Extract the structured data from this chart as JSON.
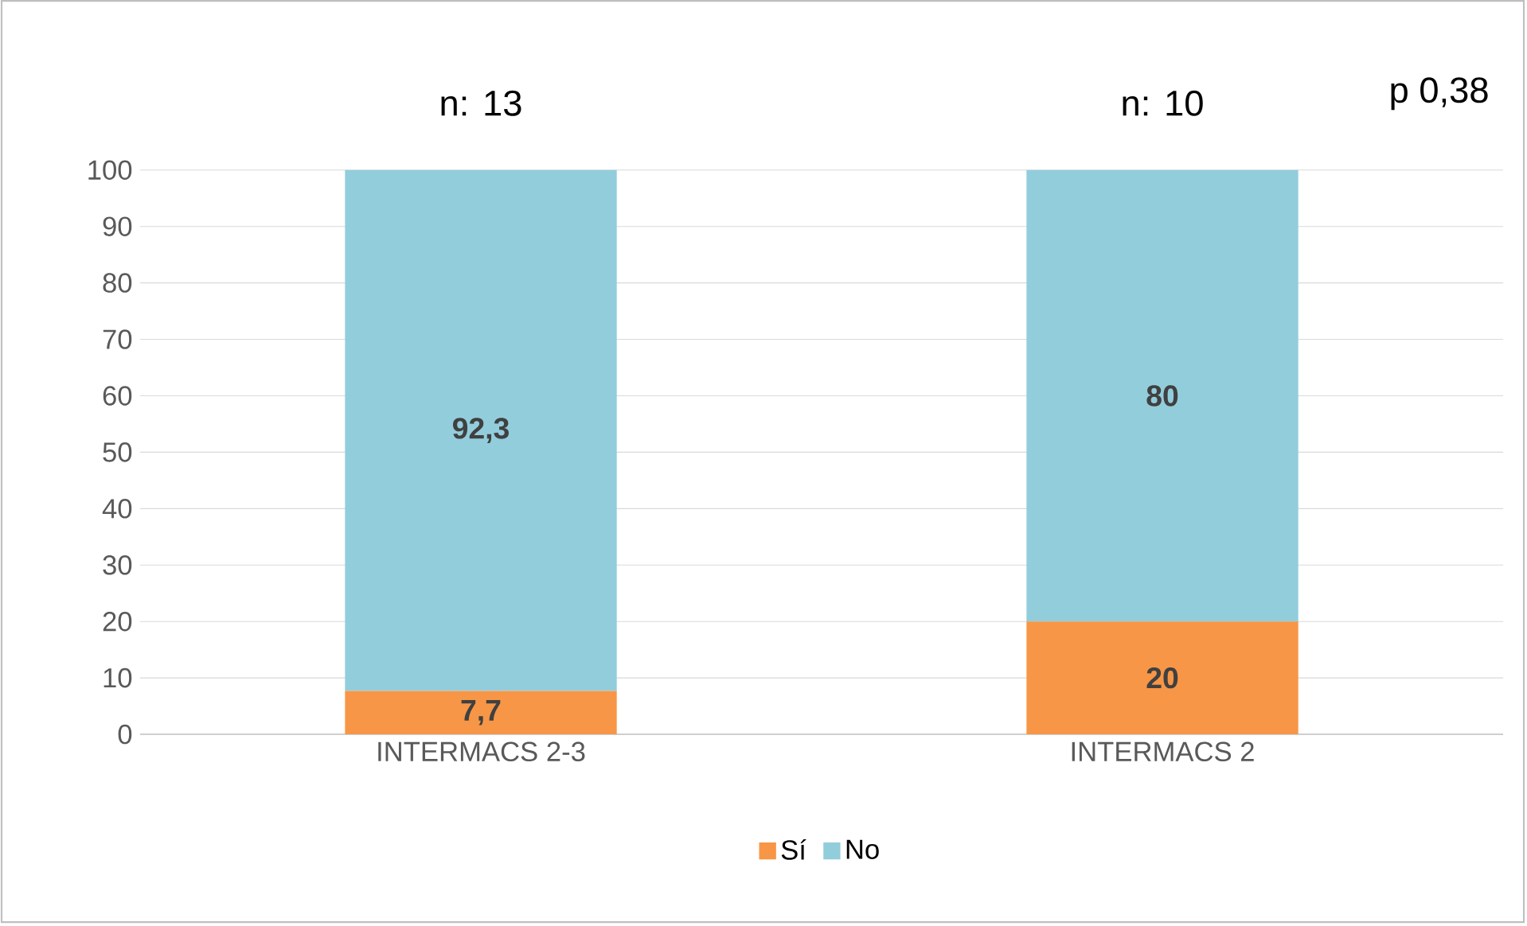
{
  "chart_data": {
    "type": "bar",
    "stacked": true,
    "categories": [
      "INTERMACS 2-3",
      "INTERMACS 2"
    ],
    "series": [
      {
        "name": "Sí",
        "color": "#f79646",
        "values": [
          7.7,
          20
        ],
        "value_labels": [
          "7,7",
          "20"
        ]
      },
      {
        "name": "No",
        "color": "#92cddc",
        "values": [
          92.3,
          80
        ],
        "value_labels": [
          "92,3",
          "80"
        ]
      }
    ],
    "ylim": [
      0,
      100
    ],
    "yticks": [
      0,
      10,
      20,
      30,
      40,
      50,
      60,
      70,
      80,
      90,
      100
    ],
    "grid": "y",
    "legend": "bottom",
    "annotations": [
      "n: 13",
      "n: 10",
      "p 0,38"
    ]
  }
}
